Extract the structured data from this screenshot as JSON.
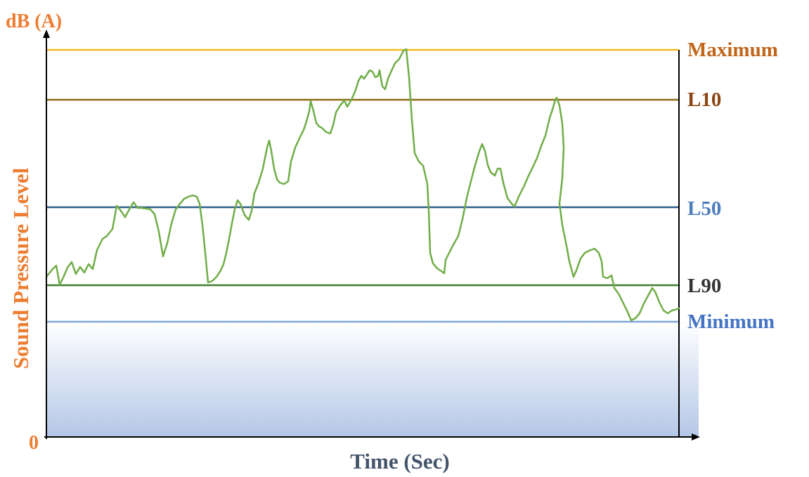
{
  "y_unit_label": "dB (A)",
  "y_axis_title": "Sound Pressure Level",
  "x_axis_title": "Time (Sec)",
  "origin_label": "0",
  "levels": [
    {
      "key": "maximum",
      "label": "Maximum",
      "line_color": "#F5B921",
      "label_color": "#C0651A"
    },
    {
      "key": "l10",
      "label": "L10",
      "line_color": "#8A6A14",
      "label_color": "#8B4513"
    },
    {
      "key": "l50",
      "label": "L50",
      "line_color": "#2F5F8A",
      "label_color": "#4A7EBB"
    },
    {
      "key": "l90",
      "label": "L90",
      "line_color": "#3F7F2F",
      "label_color": "#333333"
    },
    {
      "key": "minimum",
      "label": "Minimum",
      "line_color": "#7FA7D6",
      "label_color": "#4472C4"
    }
  ],
  "colors": {
    "accent_orange": "#ED7D31",
    "axis": "#000000",
    "curve": "#70AD47",
    "x_title": "#44546A",
    "fill_top": "#FFFFFF",
    "fill_bottom": "#B4C7E7"
  }
}
